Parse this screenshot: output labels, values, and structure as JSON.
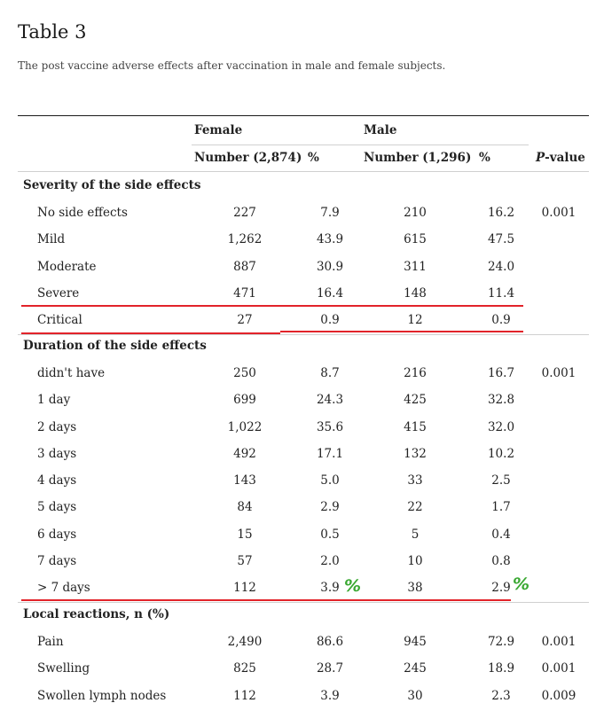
{
  "title": "Table 3",
  "caption": "The post vaccine adverse effects after vaccination in male and female subjects.",
  "header": {
    "female": "Female",
    "male": "Male",
    "female_number": "Number (2,874)",
    "female_pct": "%",
    "male_number": "Number (1,296)",
    "male_pct": "%",
    "pvalue_italic": "P",
    "pvalue_rest": "-value"
  },
  "sections": [
    {
      "label": "Severity of the side effects",
      "rows": [
        {
          "name": "No side effects",
          "f_n": "227",
          "f_pct": "7.9",
          "m_n": "210",
          "m_pct": "16.2",
          "p": "0.001"
        },
        {
          "name": "Mild",
          "f_n": "1,262",
          "f_pct": "43.9",
          "m_n": "615",
          "m_pct": "47.5",
          "p": ""
        },
        {
          "name": "Moderate",
          "f_n": "887",
          "f_pct": "30.9",
          "m_n": "311",
          "m_pct": "24.0",
          "p": ""
        },
        {
          "name": "Severe",
          "f_n": "471",
          "f_pct": "16.4",
          "m_n": "148",
          "m_pct": "11.4",
          "p": ""
        },
        {
          "name": "Critical",
          "f_n": "27",
          "f_pct": "0.9",
          "m_n": "12",
          "m_pct": "0.9",
          "p": ""
        }
      ]
    },
    {
      "label": "Duration of the side effects",
      "rows": [
        {
          "name": "didn't have",
          "f_n": "250",
          "f_pct": "8.7",
          "m_n": "216",
          "m_pct": "16.7",
          "p": "0.001"
        },
        {
          "name": "1 day",
          "f_n": "699",
          "f_pct": "24.3",
          "m_n": "425",
          "m_pct": "32.8",
          "p": ""
        },
        {
          "name": "2 days",
          "f_n": "1,022",
          "f_pct": "35.6",
          "m_n": "415",
          "m_pct": "32.0",
          "p": ""
        },
        {
          "name": "3 days",
          "f_n": "492",
          "f_pct": "17.1",
          "m_n": "132",
          "m_pct": "10.2",
          "p": ""
        },
        {
          "name": "4 days",
          "f_n": "143",
          "f_pct": "5.0",
          "m_n": "33",
          "m_pct": "2.5",
          "p": ""
        },
        {
          "name": "5 days",
          "f_n": "84",
          "f_pct": "2.9",
          "m_n": "22",
          "m_pct": "1.7",
          "p": ""
        },
        {
          "name": "6 days",
          "f_n": "15",
          "f_pct": "0.5",
          "m_n": "5",
          "m_pct": "0.4",
          "p": ""
        },
        {
          "name": "7 days",
          "f_n": "57",
          "f_pct": "2.0",
          "m_n": "10",
          "m_pct": "0.8",
          "p": ""
        },
        {
          "name": "> 7 days",
          "f_n": "112",
          "f_pct": "3.9",
          "m_n": "38",
          "m_pct": "2.9",
          "p": ""
        }
      ]
    },
    {
      "label": "Local reactions, n (%)",
      "rows": [
        {
          "name": "Pain",
          "f_n": "2,490",
          "f_pct": "86.6",
          "m_n": "945",
          "m_pct": "72.9",
          "p": "0.001"
        },
        {
          "name": "Swelling",
          "f_n": "825",
          "f_pct": "28.7",
          "m_n": "245",
          "m_pct": "18.9",
          "p": "0.001"
        },
        {
          "name": "Swollen lymph nodes",
          "f_n": "112",
          "f_pct": "3.9",
          "m_n": "30",
          "m_pct": "2.3",
          "p": "0.009"
        }
      ]
    }
  ],
  "annotations": {
    "check_mark": "%",
    "underline_color": "#e2232a",
    "check_color": "#3aa832"
  }
}
